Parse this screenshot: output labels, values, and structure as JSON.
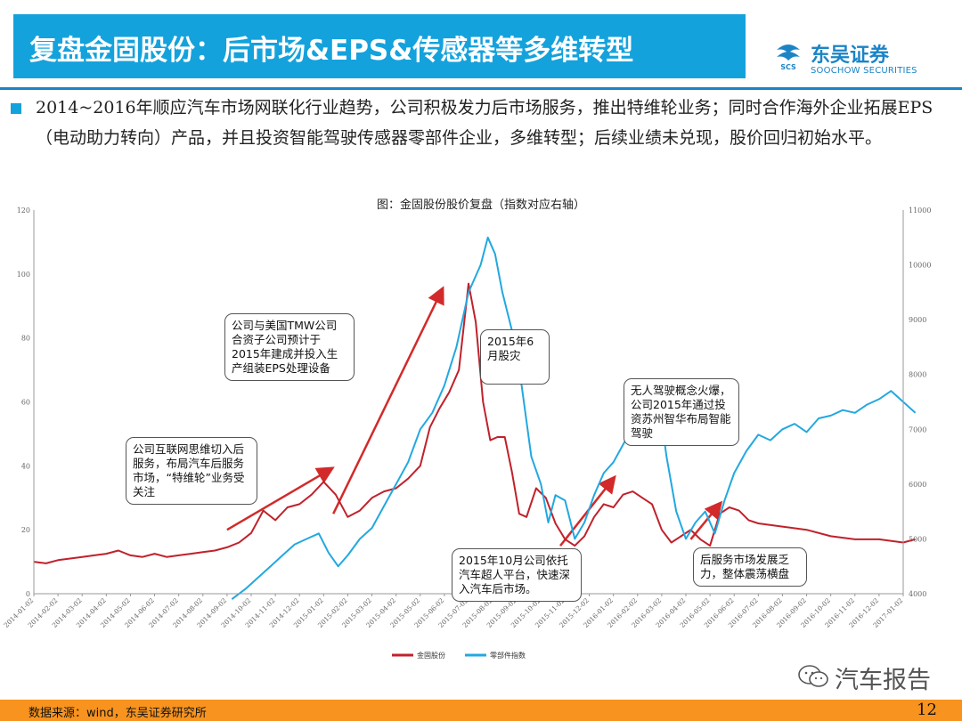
{
  "header": {
    "title": "复盘金固股份：后市场&EPS&传感器等多维转型",
    "logo_cn": "东吴证券",
    "logo_en": "SOOCHOW SECURITIES",
    "logo_mark": "SCS"
  },
  "body_text": "2014~2016年顺应汽车市场网联化行业趋势，公司积极发力后市场服务，推出特维轮业务；同时合作海外企业拓展EPS（电动助力转向）产品，并且投资智能驾驶传感器零部件企业，多维转型；后续业绩未兑现，股价回归初始水平。",
  "annotations": [
    "公司互联网思维切入后服务，布局汽车后服务市场，“特维轮”业务受关注",
    "公司与美国TMW公司合资子公司预计于2015年建成并投入生产组装EPS处理设备",
    "2015年6月股灾",
    "2015年10月公司依托汽车超人平台，快速深入汽车后市场。",
    "无人驾驶概念火爆，公司2015年通过投资苏州智华布局智能驾驶",
    "后服务市场发展乏力，整体震荡横盘"
  ],
  "footer": {
    "source": "数据来源：wind，东吴证券研究所",
    "page": "12"
  },
  "watermark": "汽车报告",
  "colors": {
    "header_bg": "#14a2dc",
    "stock": "#c0212b",
    "index": "#22a8e0",
    "arrow": "#d22a2a",
    "footer": "#f7931e"
  },
  "chart_data": {
    "type": "line",
    "title": "图：金固股份股价复盘（指数对应右轴）",
    "x_ticks": [
      "2014-01-02",
      "2014-02-02",
      "2014-03-02",
      "2014-04-02",
      "2014-05-02",
      "2014-06-02",
      "2014-07-02",
      "2014-08-02",
      "2014-09-02",
      "2014-10-02",
      "2014-11-02",
      "2014-12-02",
      "2015-01-02",
      "2015-02-02",
      "2015-03-02",
      "2015-04-02",
      "2015-05-02",
      "2015-06-02",
      "2015-07-02",
      "2015-08-02",
      "2015-09-02",
      "2015-10-02",
      "2015-11-02",
      "2015-12-02",
      "2016-01-02",
      "2016-02-02",
      "2016-03-02",
      "2016-04-02",
      "2016-05-02",
      "2016-06-02",
      "2016-07-02",
      "2016-08-02",
      "2016-09-02",
      "2016-10-02",
      "2016-11-02",
      "2016-12-02",
      "2017-01-02"
    ],
    "y_left": {
      "min": 0,
      "max": 120,
      "ticks": [
        "0",
        "20",
        "40",
        "60",
        "80",
        "100",
        "120"
      ]
    },
    "y_right": {
      "min": 4000,
      "max": 11000,
      "ticks": [
        "4000",
        "5000",
        "6000",
        "7000",
        "8000",
        "9000",
        "10000",
        "11000"
      ]
    },
    "series": [
      {
        "name": "金固股份",
        "axis": "left",
        "color": "#c0212b",
        "points": [
          [
            0,
            10
          ],
          [
            0.5,
            9.5
          ],
          [
            1,
            10.5
          ],
          [
            1.5,
            11
          ],
          [
            2,
            11.5
          ],
          [
            2.5,
            12
          ],
          [
            3,
            12.5
          ],
          [
            3.5,
            13.5
          ],
          [
            4,
            12
          ],
          [
            4.5,
            11.5
          ],
          [
            5,
            12.5
          ],
          [
            5.5,
            11.5
          ],
          [
            6,
            12
          ],
          [
            6.5,
            12.5
          ],
          [
            7,
            13
          ],
          [
            7.5,
            13.5
          ],
          [
            8,
            14.5
          ],
          [
            8.5,
            16
          ],
          [
            9,
            19
          ],
          [
            9.5,
            26
          ],
          [
            10,
            23
          ],
          [
            10.5,
            27
          ],
          [
            11,
            28
          ],
          [
            11.5,
            31
          ],
          [
            12,
            35
          ],
          [
            12.5,
            31
          ],
          [
            13,
            24
          ],
          [
            13.5,
            26
          ],
          [
            14,
            30
          ],
          [
            14.5,
            32
          ],
          [
            15,
            33
          ],
          [
            15.5,
            36
          ],
          [
            16,
            40
          ],
          [
            16.4,
            52
          ],
          [
            16.8,
            58
          ],
          [
            17.2,
            63
          ],
          [
            17.6,
            70
          ],
          [
            18,
            97
          ],
          [
            18.3,
            85
          ],
          [
            18.6,
            60
          ],
          [
            18.9,
            48
          ],
          [
            19.2,
            49
          ],
          [
            19.5,
            49
          ],
          [
            19.8,
            38
          ],
          [
            20.1,
            25
          ],
          [
            20.4,
            24
          ],
          [
            20.8,
            33
          ],
          [
            21.2,
            30
          ],
          [
            21.6,
            22
          ],
          [
            22,
            17
          ],
          [
            22.4,
            15
          ],
          [
            22.8,
            18
          ],
          [
            23.2,
            24
          ],
          [
            23.6,
            28
          ],
          [
            24,
            27
          ],
          [
            24.4,
            31
          ],
          [
            24.8,
            32
          ],
          [
            25.2,
            30
          ],
          [
            25.6,
            28
          ],
          [
            26,
            20
          ],
          [
            26.4,
            16
          ],
          [
            26.8,
            18
          ],
          [
            27.2,
            20
          ],
          [
            27.6,
            17
          ],
          [
            28,
            15
          ],
          [
            28.4,
            25
          ],
          [
            28.8,
            27
          ],
          [
            29.2,
            26
          ],
          [
            29.6,
            23
          ],
          [
            30,
            22
          ],
          [
            31,
            21
          ],
          [
            32,
            20
          ],
          [
            33,
            18
          ],
          [
            34,
            17
          ],
          [
            35,
            17
          ],
          [
            36,
            16
          ],
          [
            36.5,
            17
          ]
        ]
      },
      {
        "name": "零部件指数",
        "axis": "right",
        "color": "#22a8e0",
        "points": [
          [
            8.2,
            3900
          ],
          [
            8.8,
            4100
          ],
          [
            9.3,
            4300
          ],
          [
            9.8,
            4500
          ],
          [
            10.3,
            4700
          ],
          [
            10.8,
            4900
          ],
          [
            11.3,
            5000
          ],
          [
            11.8,
            5100
          ],
          [
            12.2,
            4750
          ],
          [
            12.6,
            4500
          ],
          [
            13,
            4700
          ],
          [
            13.5,
            5000
          ],
          [
            14,
            5200
          ],
          [
            14.5,
            5600
          ],
          [
            15,
            6000
          ],
          [
            15.5,
            6400
          ],
          [
            16,
            7000
          ],
          [
            16.5,
            7300
          ],
          [
            17,
            7800
          ],
          [
            17.5,
            8500
          ],
          [
            18,
            9500
          ],
          [
            18.5,
            10000
          ],
          [
            18.8,
            10500
          ],
          [
            19.1,
            10200
          ],
          [
            19.4,
            9500
          ],
          [
            19.8,
            8800
          ],
          [
            20.2,
            7800
          ],
          [
            20.6,
            6500
          ],
          [
            21,
            6000
          ],
          [
            21.3,
            5300
          ],
          [
            21.6,
            5800
          ],
          [
            22,
            5700
          ],
          [
            22.4,
            5000
          ],
          [
            22.8,
            5300
          ],
          [
            23.2,
            5800
          ],
          [
            23.6,
            6200
          ],
          [
            24,
            6400
          ],
          [
            24.5,
            6800
          ],
          [
            25,
            7200
          ],
          [
            25.4,
            7600
          ],
          [
            25.8,
            7800
          ],
          [
            26.2,
            6500
          ],
          [
            26.6,
            5500
          ],
          [
            27,
            5000
          ],
          [
            27.4,
            5300
          ],
          [
            27.8,
            5500
          ],
          [
            28.2,
            5100
          ],
          [
            28.6,
            5700
          ],
          [
            29,
            6200
          ],
          [
            29.5,
            6600
          ],
          [
            30,
            6900
          ],
          [
            30.5,
            6800
          ],
          [
            31,
            7000
          ],
          [
            31.5,
            7100
          ],
          [
            32,
            6950
          ],
          [
            32.5,
            7200
          ],
          [
            33,
            7250
          ],
          [
            33.5,
            7350
          ],
          [
            34,
            7300
          ],
          [
            34.5,
            7450
          ],
          [
            35,
            7550
          ],
          [
            35.5,
            7700
          ],
          [
            36,
            7500
          ],
          [
            36.5,
            7300
          ]
        ]
      }
    ],
    "legend": "bottom-center"
  }
}
